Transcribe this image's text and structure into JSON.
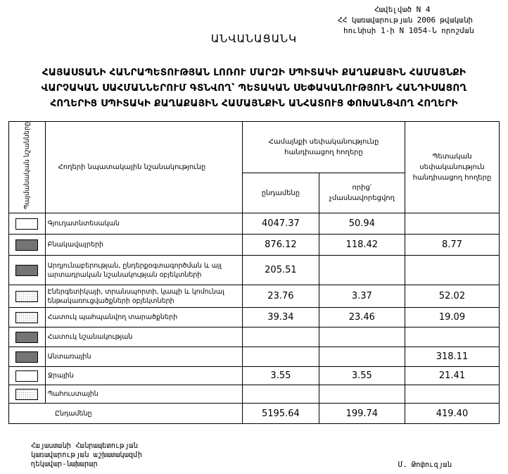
{
  "annex": {
    "line1": "Հավելված N 4",
    "line2": "ՀՀ կառավարության 2006 թվականի",
    "line3": "հունիսի 1-ի N 1054-Ն որոշման"
  },
  "document_title": "ԱՆՎԱՆԱՑԱՆԿ",
  "heading": {
    "line1": "ՀԱՅԱՍՏԱՆԻ ՀԱՆՐԱՊԵՏՈՒԹՅԱՆ ԼՈՌՈՒ ՄԱՐԶԻ ՍՊԻՏԱԿԻ ՔԱՂԱՔԱՅԻՆ ՀԱՄԱՅՆՔԻ",
    "line2": "ՎԱՐՉԱԿԱՆ ՍԱՀՄԱՆՆԵՐՈՒՄ ԳՏՆՎՈՂ՝ ՊԵՏԱԿԱՆ ՍԵՓԱԿԱՆՈՒԹՅՈՒՆ ՀԱՆԴԻՍԱՑՈՂ",
    "line3": "ՀՈՂԵՐԻՑ ՍՊԻՏԱԿԻ ՔԱՂԱՔԱՅԻՆ ՀԱՄԱՅՆՔԻՆ ԱՆՀԱՏՈՒՑ ՓՈԽԱՆՑՎՈՂ ՀՈՂԵՐԻ"
  },
  "table": {
    "headers": {
      "symbols": "Պայմանական նշանները",
      "purpose": "Հողերի նպատակային նշանակությունը",
      "community": "Համայնքի սեփականությունը հանդիսացող հողերը",
      "total": "ընդամենը",
      "non_privatized": "որից՝ չմասնավորեցվող",
      "state": "Պետական սեփականություն հանդիսացող հողերը"
    },
    "rows": [
      {
        "symbol": "none",
        "name": "Գյուղատնտեսական",
        "total": "4047.37",
        "non_privatized": "50.94",
        "state": ""
      },
      {
        "symbol": "dense",
        "name": "Բնակավայրերի",
        "total": "876.12",
        "non_privatized": "118.42",
        "state": "8.77"
      },
      {
        "symbol": "dense",
        "name": "Արդյունաբերության, ընդերքօգտագործման և այլ արտադրական նշանակության օբյեկտների",
        "total": "205.51",
        "non_privatized": "",
        "state": ""
      },
      {
        "symbol": "light",
        "name": "Էներգետիկայի, տրանսպորտի, կապի և կոմունալ ենթակառուցվածքների օբյեկտների",
        "total": "23.76",
        "non_privatized": "3.37",
        "state": "52.02"
      },
      {
        "symbol": "light",
        "name": "Հատուկ պահպանվող տարածքների",
        "total": "39.34",
        "non_privatized": "23.46",
        "state": "19.09"
      },
      {
        "symbol": "dense",
        "name": "Հատուկ նշանակության",
        "total": "",
        "non_privatized": "",
        "state": ""
      },
      {
        "symbol": "dense",
        "name": "Անտառային",
        "total": "",
        "non_privatized": "",
        "state": "318.11"
      },
      {
        "symbol": "none",
        "name": "Ջրային",
        "total": "3.55",
        "non_privatized": "3.55",
        "state": "21.41"
      },
      {
        "symbol": "light",
        "name": "Պահուստային",
        "total": "",
        "non_privatized": "",
        "state": ""
      }
    ],
    "totals": {
      "label": "Ընդամենը",
      "total": "5195.64",
      "non_privatized": "199.74",
      "state": "419.40"
    }
  },
  "footer": {
    "position_line1": "Հայաստանի Հանրապետության",
    "position_line2": "կառավարության աշխատակազմի",
    "position_line3": "ղեկավար-նախարար",
    "signatory": "Մ. Թոփուզյան"
  }
}
